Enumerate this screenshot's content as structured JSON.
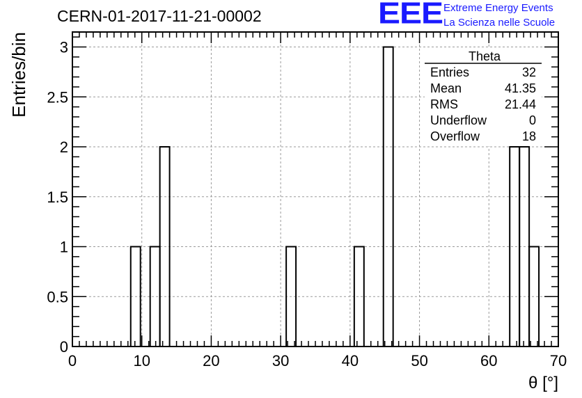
{
  "header": {
    "title": "CERN-01-2017-11-21-00002",
    "logo_text": "EEE",
    "logo_line1": "Extreme Energy Events",
    "logo_line2": "La Scienza nelle Scuole",
    "logo_color": "#1a1aff"
  },
  "stats_box": {
    "title": "Theta",
    "rows": [
      {
        "label": "Entries",
        "value": "32"
      },
      {
        "label": "Mean",
        "value": "41.35"
      },
      {
        "label": "RMS",
        "value": "21.44"
      },
      {
        "label": "Underflow",
        "value": "0"
      },
      {
        "label": "Overflow",
        "value": "18"
      }
    ]
  },
  "chart_data": {
    "type": "bar",
    "histogram": true,
    "xlabel": "θ [°]",
    "ylabel": "Entries/bin",
    "xlim": [
      0,
      70
    ],
    "ylim": [
      0,
      3.15
    ],
    "grid": true,
    "x_ticks": [
      0,
      10,
      20,
      30,
      40,
      50,
      60,
      70
    ],
    "y_ticks": [
      0,
      0.5,
      1,
      1.5,
      2,
      2.5,
      3
    ],
    "y_tick_labels": [
      "0",
      "0.5",
      "1",
      "1.5",
      "2",
      "2.5",
      "3"
    ],
    "bins": [
      {
        "x0": 8.4,
        "x1": 9.8,
        "value": 1
      },
      {
        "x0": 11.2,
        "x1": 12.6,
        "value": 1
      },
      {
        "x0": 12.6,
        "x1": 14.0,
        "value": 2
      },
      {
        "x0": 30.8,
        "x1": 32.2,
        "value": 1
      },
      {
        "x0": 40.6,
        "x1": 42.0,
        "value": 1
      },
      {
        "x0": 44.8,
        "x1": 46.2,
        "value": 3
      },
      {
        "x0": 63.0,
        "x1": 64.4,
        "value": 2
      },
      {
        "x0": 64.4,
        "x1": 65.8,
        "value": 2
      },
      {
        "x0": 65.8,
        "x1": 67.2,
        "value": 1
      }
    ],
    "line_color": "#000000"
  }
}
